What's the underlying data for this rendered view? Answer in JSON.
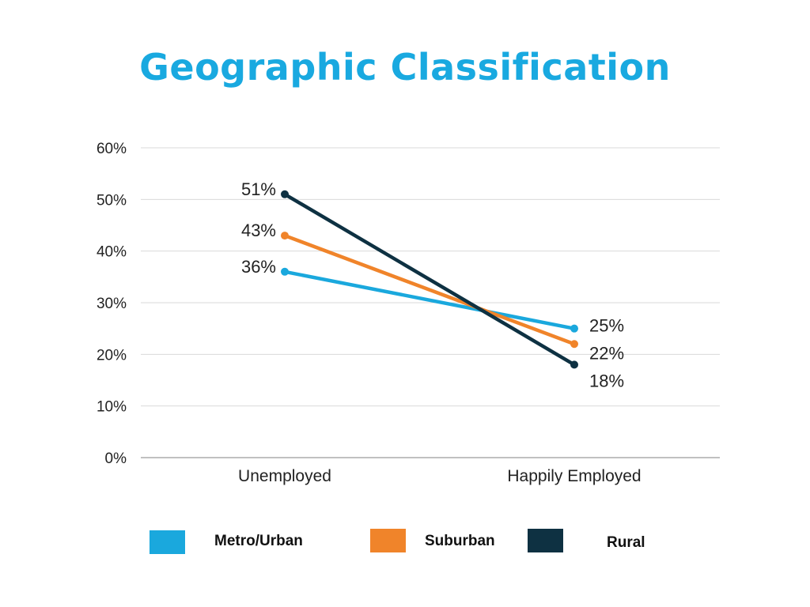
{
  "chart_data": {
    "type": "line",
    "title": "Geographic Classification",
    "categories": [
      "Unemployed",
      "Happily Employed"
    ],
    "y_tick_labels": [
      "0%",
      "10%",
      "20%",
      "30%",
      "40%",
      "50%",
      "60%"
    ],
    "ylim": [
      0,
      60
    ],
    "grid": true,
    "legend_position": "bottom",
    "series": [
      {
        "name": "Metro/Urban",
        "values": [
          36,
          25
        ],
        "labels": [
          "36%",
          "25%"
        ],
        "color": "#1aa8dd"
      },
      {
        "name": "Suburban",
        "values": [
          43,
          22
        ],
        "labels": [
          "43%",
          "22%"
        ],
        "color": "#f0842a"
      },
      {
        "name": "Rural",
        "values": [
          51,
          18
        ],
        "labels": [
          "51%",
          "18%"
        ],
        "color": "#0e3142"
      }
    ]
  },
  "colors": {
    "title": "#19a9e0",
    "grid": "#d9d9d9",
    "axis": "#9a9a9a"
  }
}
